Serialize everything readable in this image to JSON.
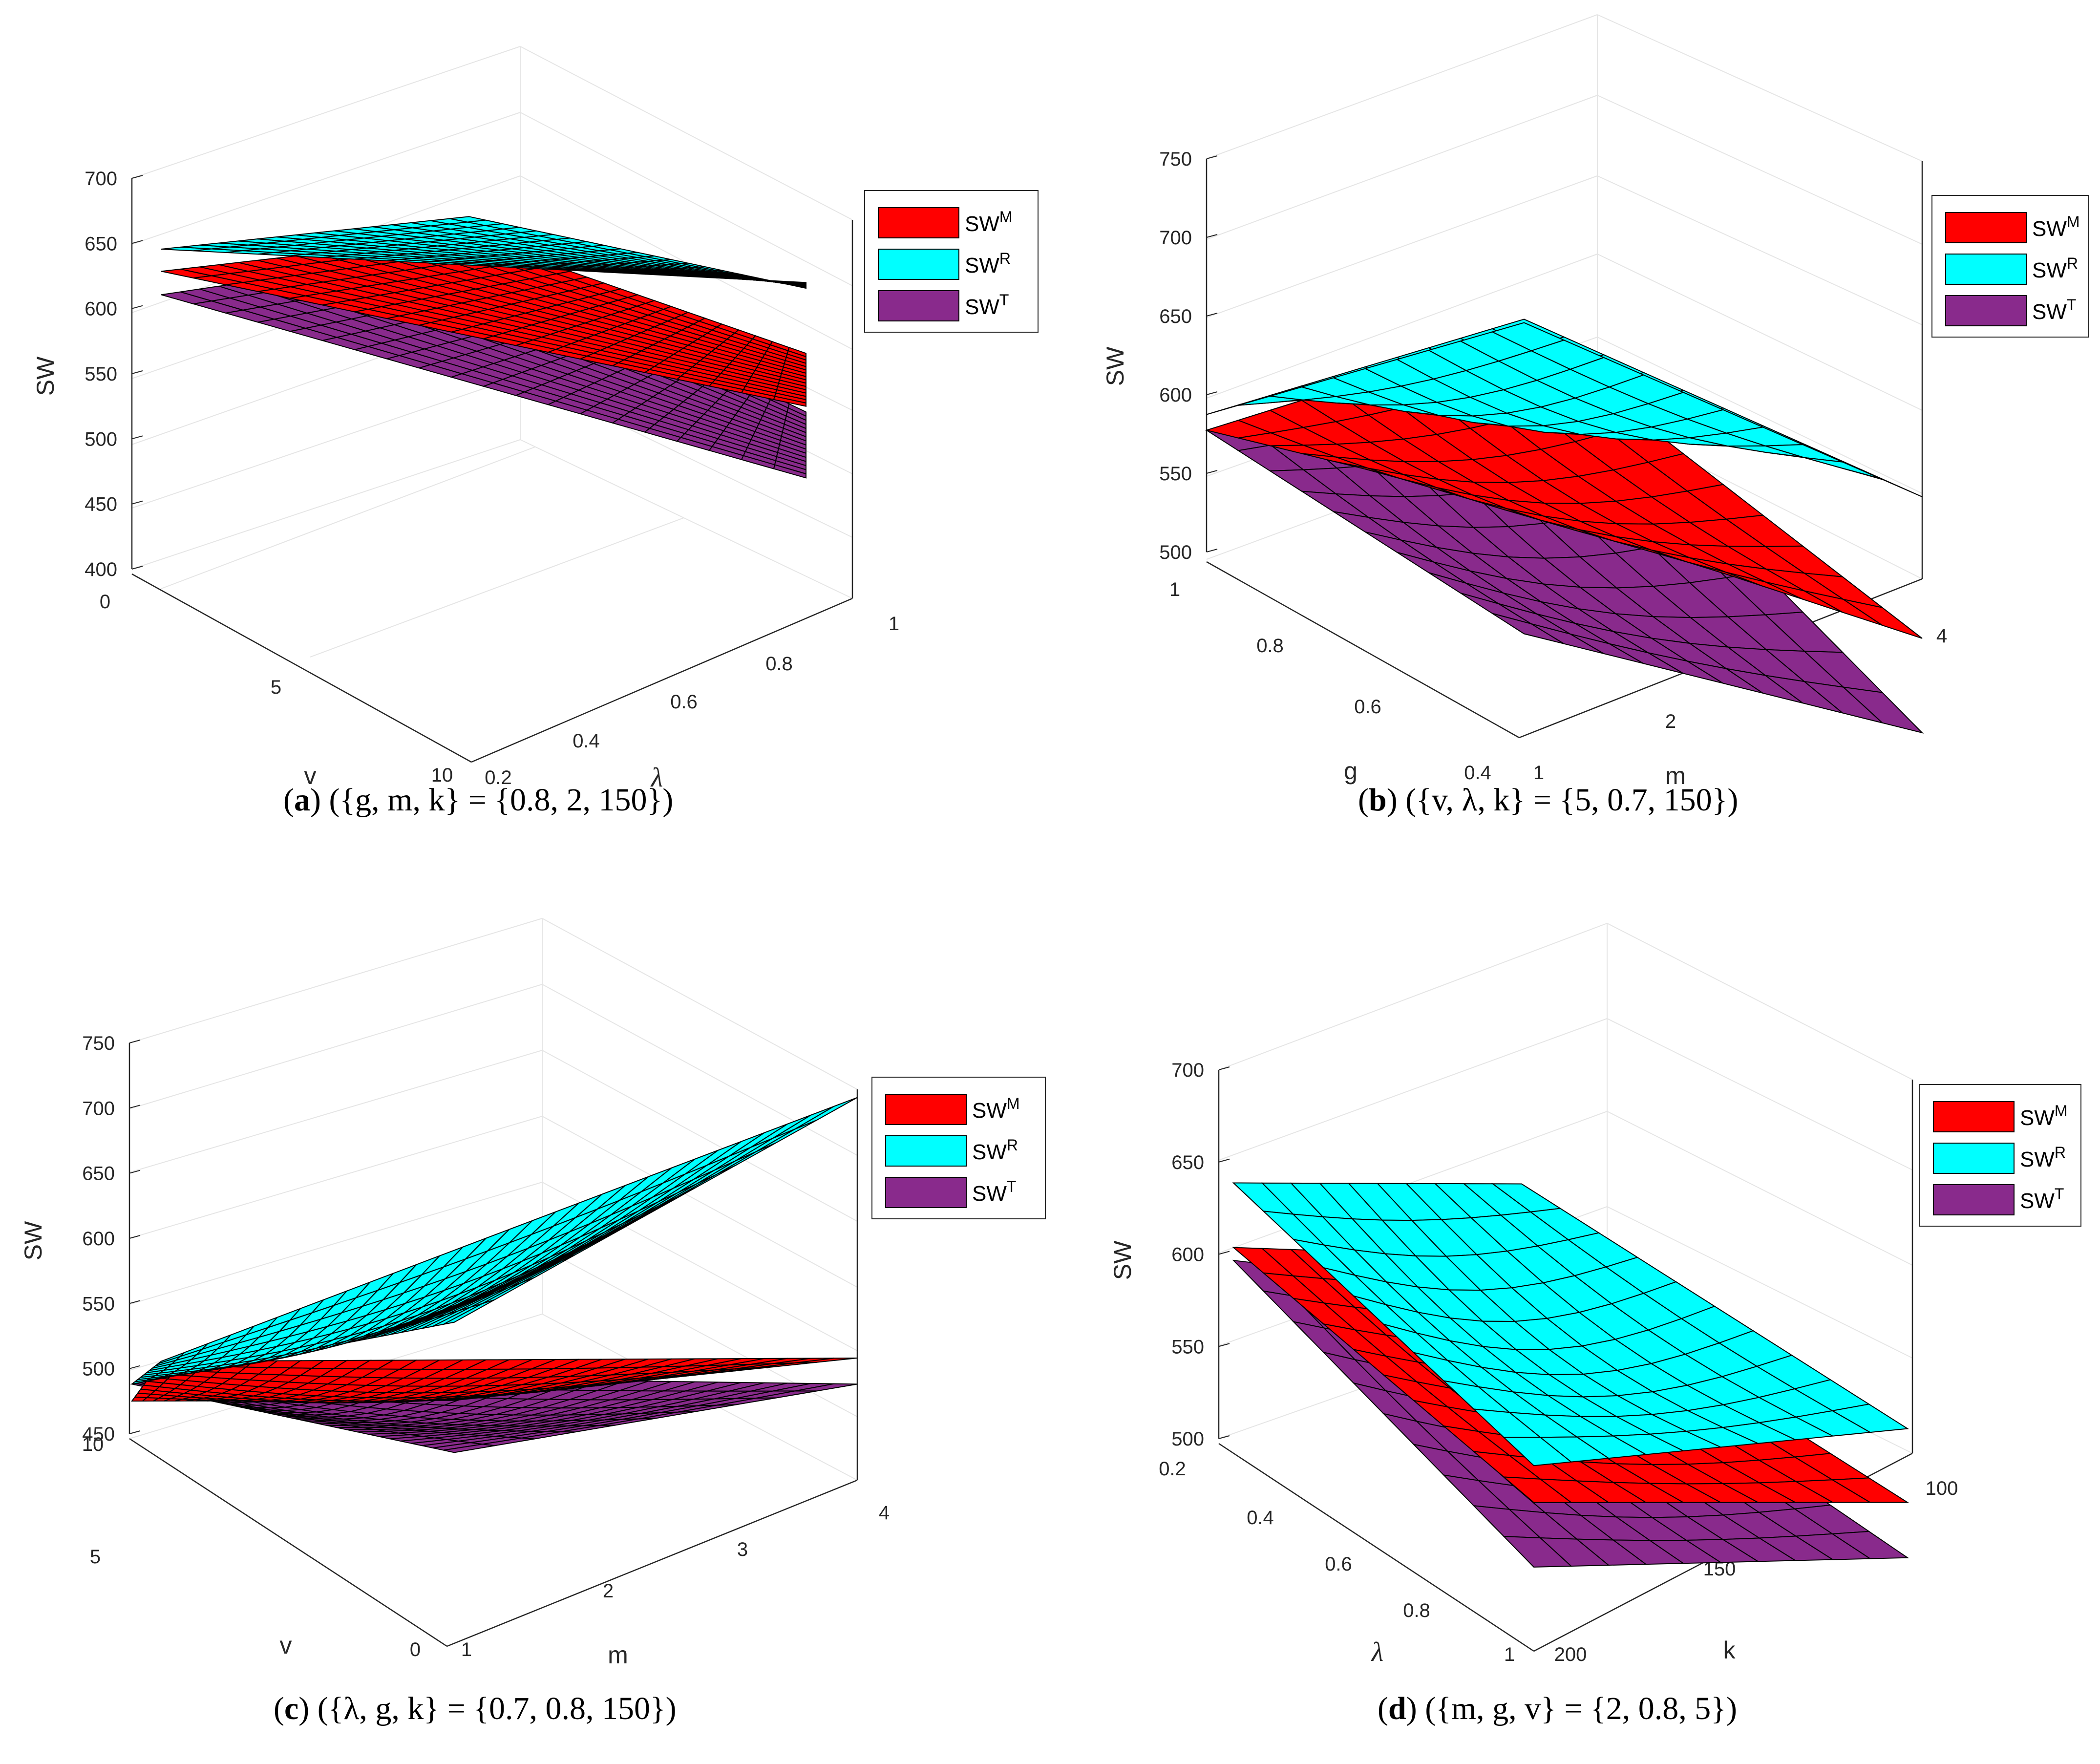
{
  "figure": {
    "colors": {
      "SW^M": "#ff0000",
      "SW^R": "#00ffff",
      "SW^T": "#892a8c"
    },
    "legend_entries": [
      {
        "base": "SW",
        "sup": "M",
        "key": "SW^M"
      },
      {
        "base": "SW",
        "sup": "R",
        "key": "SW^R"
      },
      {
        "base": "SW",
        "sup": "T",
        "key": "SW^T"
      }
    ]
  },
  "chart_data": [
    {
      "type": "surface3d",
      "panel_label": "a",
      "caption": "({g, m, k} = {0.8, 2, 150})",
      "zlabel": "SW",
      "xlabel": "v",
      "ylabel": "λ",
      "zlim": [
        400,
        700
      ],
      "zticks": [
        "400",
        "450",
        "500",
        "550",
        "600",
        "650",
        "700"
      ],
      "xticks": [
        "0",
        "5",
        "10"
      ],
      "yticks": [
        "0.2",
        "0.4",
        "0.6",
        "0.8",
        "1"
      ],
      "grid_divisions": [
        20,
        16
      ],
      "series": [
        {
          "name": "SW^T",
          "corners": {
            "v0_l02": 590,
            "v0_l1": 500,
            "v10_l02": 520,
            "v10_l1": 395
          }
        },
        {
          "name": "SW^M",
          "corners": {
            "v0_l02": 608,
            "v0_l1": 555,
            "v10_l02": 530,
            "v10_l1": 440
          }
        },
        {
          "name": "SW^R",
          "corners": {
            "v0_l02": 625,
            "v0_l1": 650,
            "v10_l02": 545,
            "v10_l1": 490
          }
        }
      ]
    },
    {
      "type": "surface3d",
      "panel_label": "b",
      "caption": "({v, λ, k} = {5, 0.7, 150})",
      "zlabel": "SW",
      "xlabel": "g",
      "ylabel": "m",
      "zlim": [
        500,
        750
      ],
      "zticks": [
        "500",
        "550",
        "600",
        "650",
        "700",
        "750"
      ],
      "xticks": [
        "1",
        "0.8",
        "0.6",
        "0.4"
      ],
      "yticks": [
        "1",
        "2",
        "3",
        "4"
      ],
      "grid_divisions": [
        10,
        10
      ],
      "series": [
        {
          "name": "SW^T",
          "corners": {
            "g1_m1": 565,
            "g1_m4": 580,
            "g04_m1": 515,
            "g04_m4": 500
          }
        },
        {
          "name": "SW^M",
          "corners": {
            "g1_m1": 565,
            "g1_m4": 660,
            "g04_m1": 515,
            "g04_m4": 560
          }
        },
        {
          "name": "SW^R",
          "corners": {
            "g1_m1": 575,
            "g1_m4": 780,
            "g04_m1": 520,
            "g04_m4": 650
          }
        }
      ]
    },
    {
      "type": "surface3d",
      "panel_label": "c",
      "caption": "({λ, g, k} = {0.7, 0.8, 150})",
      "zlabel": "SW",
      "xlabel": "v",
      "ylabel": "m",
      "zlim": [
        450,
        750
      ],
      "zticks": [
        "450",
        "500",
        "550",
        "600",
        "650",
        "700",
        "750"
      ],
      "xticks": [
        "10",
        "5",
        "0"
      ],
      "yticks": [
        "1",
        "2",
        "3",
        "4"
      ],
      "grid_divisions": [
        30,
        10
      ],
      "series": [
        {
          "name": "SW^T",
          "corners": {
            "v10_m1": 490,
            "v10_m4": 610,
            "v0_m1": 490,
            "v0_m4": 520
          }
        },
        {
          "name": "SW^M",
          "corners": {
            "v10_m1": 477,
            "v10_m4": 650,
            "v0_m1": 500,
            "v0_m4": 540
          }
        },
        {
          "name": "SW^R",
          "corners": {
            "v10_m1": 490,
            "v10_m4": 710,
            "v0_m1": 500,
            "v0_m4": 740
          }
        }
      ]
    },
    {
      "type": "surface3d",
      "panel_label": "d",
      "caption": "({m, g, v} = {2, 0.8, 5})",
      "zlabel": "SW",
      "xlabel": "λ",
      "ylabel": "k",
      "zlim": [
        500,
        700
      ],
      "zticks": [
        "500",
        "550",
        "600",
        "650",
        "700"
      ],
      "xticks": [
        "0.2",
        "0.4",
        "0.6",
        "0.8",
        "1"
      ],
      "yticks": [
        "200",
        "150",
        "100"
      ],
      "grid_divisions": [
        10,
        10
      ],
      "series": [
        {
          "name": "SW^T",
          "corners": {
            "l02_k200": 598,
            "l02_k100": 535,
            "l1_k200": 500,
            "l1_k100": 450
          }
        },
        {
          "name": "SW^M",
          "corners": {
            "l02_k200": 605,
            "l02_k100": 570,
            "l1_k200": 520,
            "l1_k100": 480
          }
        },
        {
          "name": "SW^R",
          "corners": {
            "l02_k200": 640,
            "l02_k100": 590,
            "l1_k200": 560,
            "l1_k100": 520
          }
        }
      ]
    }
  ]
}
